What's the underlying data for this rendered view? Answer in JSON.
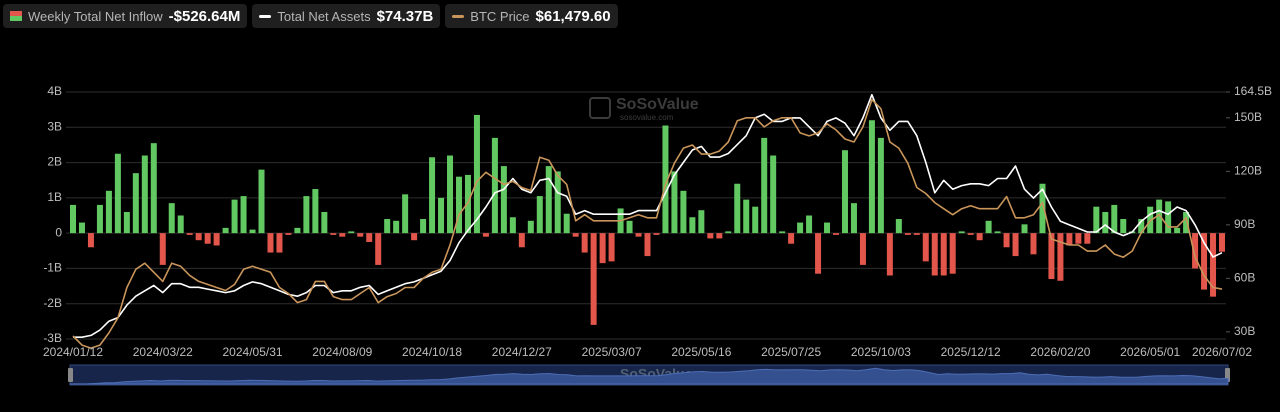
{
  "chart_data": {
    "type": "combo",
    "categories": [
      "2024/01/12",
      null,
      null,
      null,
      null,
      null,
      null,
      null,
      null,
      null,
      "2024/03/22",
      null,
      null,
      null,
      null,
      null,
      null,
      null,
      null,
      null,
      "2024/05/31",
      null,
      null,
      null,
      null,
      null,
      null,
      null,
      null,
      null,
      "2024/08/09",
      null,
      null,
      null,
      null,
      null,
      null,
      null,
      null,
      null,
      "2024/10/18",
      null,
      null,
      null,
      null,
      null,
      null,
      null,
      null,
      null,
      "2024/12/27",
      null,
      null,
      null,
      null,
      null,
      null,
      null,
      null,
      null,
      "2025/03/07",
      null,
      null,
      null,
      null,
      null,
      null,
      null,
      null,
      null,
      "2025/05/16",
      null,
      null,
      null,
      null,
      null,
      null,
      null,
      null,
      null,
      "2025/07/25",
      null,
      null,
      null,
      null,
      null,
      null,
      null,
      null,
      null,
      "2025/10/03",
      null,
      null,
      null,
      null,
      null,
      null,
      null,
      null,
      null,
      "2025/12/12",
      null,
      null,
      null,
      null,
      null,
      null,
      null,
      null,
      null,
      "2026/02/20",
      null,
      null,
      null,
      null,
      null,
      null,
      null,
      null,
      null,
      "2026/05/01",
      null,
      null,
      null,
      null,
      null,
      null,
      null,
      "2026/07/02"
    ],
    "ylim": [
      -3,
      4
    ],
    "yticks": [
      {
        "value": -3,
        "label": "-3B"
      },
      {
        "value": -2,
        "label": "-2B"
      },
      {
        "value": -1,
        "label": "-1B"
      },
      0,
      {
        "value": 1,
        "label": "1B"
      },
      {
        "value": 2,
        "label": "2B"
      },
      {
        "value": 3,
        "label": "3B"
      },
      {
        "value": 4,
        "label": "4B"
      }
    ],
    "y2lim": [
      26,
      164.5
    ],
    "y2ticks": [
      {
        "value": 30,
        "label": "30B"
      },
      {
        "value": 60,
        "label": "60B"
      },
      {
        "value": 90,
        "label": "90B"
      },
      {
        "value": 120,
        "label": "120B"
      },
      {
        "value": 150,
        "label": "150B"
      },
      {
        "value": 164.5,
        "label": "164.5B"
      }
    ],
    "y3lim": [
      45000,
      126500
    ],
    "grid": true,
    "series": [
      {
        "name": "Weekly Total Net Inflow",
        "type": "bar",
        "latest_label": "-$526.64M",
        "colors": {
          "positive": "#62c962",
          "negative": "#e2564c"
        },
        "values": [
          0.8,
          0.3,
          -0.4,
          0.8,
          1.2,
          2.25,
          0.6,
          1.7,
          2.2,
          2.55,
          -0.9,
          0.85,
          0.5,
          -0.05,
          -0.2,
          -0.3,
          -0.35,
          0.15,
          0.95,
          1.05,
          0.1,
          1.8,
          -0.55,
          -0.55,
          -0.05,
          0.15,
          1.05,
          1.25,
          0.6,
          -0.05,
          -0.1,
          0.05,
          -0.1,
          -0.25,
          -0.9,
          0.4,
          0.35,
          1.1,
          -0.2,
          0.4,
          2.15,
          1.0,
          2.2,
          1.6,
          1.65,
          3.35,
          -0.1,
          2.7,
          1.9,
          0.45,
          -0.4,
          0.35,
          1.05,
          1.9,
          1.75,
          0.55,
          -0.1,
          -0.55,
          -2.6,
          -0.85,
          -0.8,
          0.7,
          0.35,
          -0.1,
          -0.65,
          -0.05,
          3.05,
          1.75,
          1.2,
          0.45,
          0.65,
          -0.15,
          -0.15,
          0.05,
          1.4,
          0.95,
          0.75,
          2.7,
          2.2,
          0.05,
          -0.3,
          0.3,
          0.5,
          -1.15,
          0.3,
          -0.05,
          2.35,
          0.85,
          -0.9,
          3.2,
          2.7,
          -1.2,
          0.4,
          -0.05,
          -0.05,
          -0.8,
          -1.2,
          -1.2,
          -1.15,
          0.05,
          -0.05,
          -0.2,
          0.35,
          0.05,
          -0.4,
          -0.65,
          0.25,
          -0.6,
          1.4,
          -1.3,
          -1.35,
          -0.35,
          -0.3,
          -0.3,
          0.75,
          0.6,
          0.8,
          0.4,
          0.05,
          0.4,
          0.75,
          0.95,
          0.9,
          0.15,
          0.6,
          -1.0,
          -1.6,
          -1.8,
          -0.52664
        ]
      },
      {
        "name": "Total Net Assets",
        "type": "line",
        "axis": "y2",
        "color": "#ffffff",
        "latest_label": "$74.37B",
        "values": [
          27,
          27,
          28,
          31,
          36,
          38,
          45,
          50,
          53,
          56,
          52,
          57,
          57,
          55,
          55,
          54,
          53,
          52,
          53,
          56,
          58,
          57,
          55,
          53,
          51,
          50,
          52,
          56,
          56,
          52,
          53,
          53,
          55,
          56,
          51,
          53,
          55,
          57,
          58,
          60,
          62,
          64,
          70,
          80,
          87,
          93,
          100,
          108,
          110,
          116,
          110,
          108,
          115,
          116,
          108,
          106,
          96,
          98,
          96,
          96,
          96,
          96,
          96,
          98,
          98,
          98,
          108,
          118,
          125,
          132,
          134,
          128,
          128,
          130,
          135,
          140,
          150,
          152,
          148,
          148,
          150,
          150,
          145,
          140,
          148,
          150,
          147,
          140,
          150,
          163,
          150,
          143,
          148,
          148,
          140,
          125,
          108,
          115,
          110,
          112,
          113,
          113,
          112,
          116,
          116,
          123,
          110,
          105,
          110,
          100,
          92,
          90,
          88,
          86,
          86,
          90,
          86,
          84,
          86,
          92,
          96,
          98,
          96,
          100,
          98,
          90,
          80,
          72,
          74.37
        ]
      },
      {
        "name": "BTC Price",
        "type": "line",
        "axis": "y3",
        "color": "#c9955a",
        "latest_label": "$61,479.60",
        "values": [
          46000,
          43000,
          42000,
          43000,
          47000,
          52000,
          62000,
          68000,
          70000,
          67000,
          64000,
          70000,
          69000,
          66000,
          64000,
          63000,
          62000,
          61000,
          63000,
          68000,
          69000,
          68000,
          67000,
          62000,
          60000,
          57000,
          58000,
          64000,
          64000,
          59000,
          58000,
          58000,
          60000,
          62000,
          57000,
          59000,
          60000,
          62000,
          62000,
          65000,
          67000,
          68000,
          76000,
          86000,
          90000,
          97000,
          100000,
          98000,
          96000,
          97000,
          95000,
          94000,
          105000,
          104000,
          99000,
          96000,
          84000,
          86000,
          84000,
          84000,
          84000,
          84000,
          85000,
          86000,
          85000,
          85000,
          96000,
          103000,
          108000,
          109000,
          106000,
          106000,
          107000,
          110000,
          117000,
          118000,
          118000,
          115000,
          117000,
          118000,
          118000,
          113000,
          112000,
          113000,
          116000,
          114000,
          111000,
          110000,
          115000,
          124000,
          121000,
          110000,
          108000,
          103000,
          95000,
          93000,
          90000,
          88000,
          86000,
          88000,
          89000,
          88000,
          88000,
          88000,
          92000,
          85000,
          85000,
          86000,
          90000,
          78000,
          77000,
          76000,
          76000,
          74000,
          74000,
          76000,
          73000,
          72000,
          74000,
          80000,
          84000,
          86000,
          82000,
          82000,
          85000,
          72000,
          66000,
          62000,
          61479.6
        ]
      }
    ]
  },
  "watermark": {
    "title": "SoSoValue",
    "url": "sosovalue.com"
  }
}
